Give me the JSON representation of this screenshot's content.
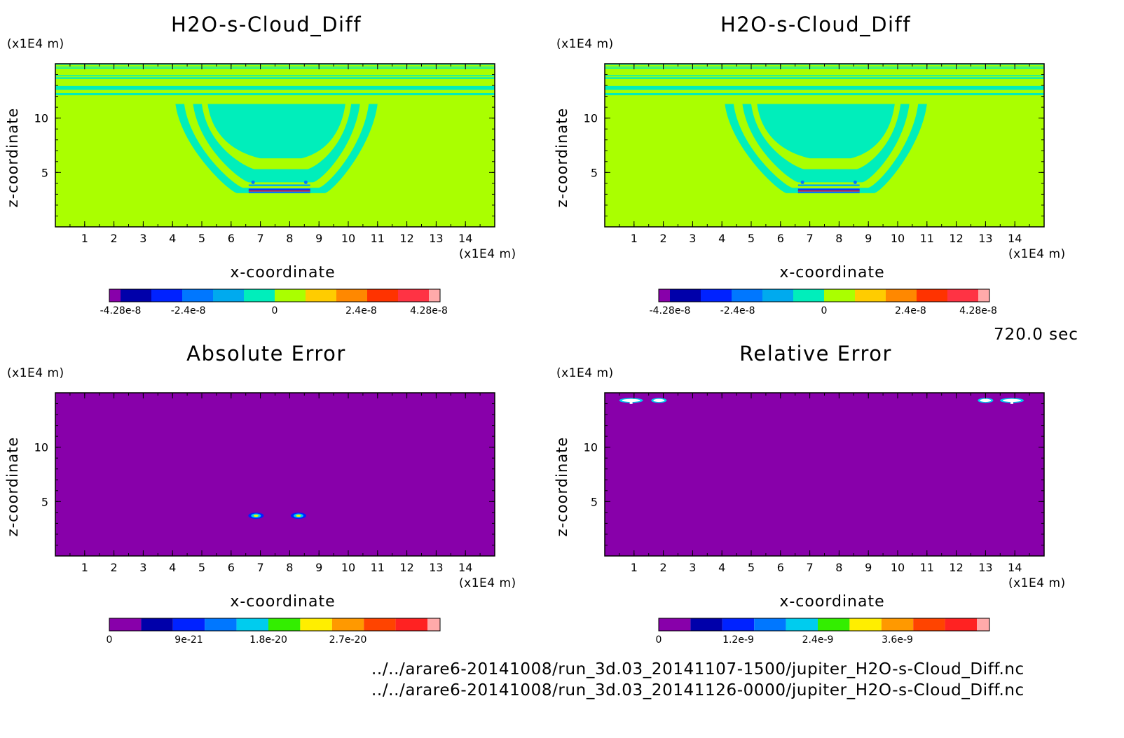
{
  "chart_data": [
    {
      "type": "heatmap",
      "title": "H2O-s-Cloud_Diff",
      "xlabel": "x-coordinate",
      "ylabel": "z-coordinate",
      "x_unit": "(x1E4 m)",
      "z_unit": "(x1E4 m)",
      "xlim": [
        0,
        15
      ],
      "ylim": [
        0,
        15
      ],
      "x_ticks": [
        "1",
        "2",
        "3",
        "4",
        "5",
        "6",
        "7",
        "8",
        "9",
        "10",
        "11",
        "12",
        "13",
        "14"
      ],
      "y_ticks": [
        "5",
        "10"
      ],
      "colorbar": {
        "min": -4.28e-08,
        "max": 4.28e-08,
        "tick_labels": [
          "-4.28e-8",
          "-2.4e-8",
          "0",
          "2.4e-8",
          "4.28e-8"
        ]
      },
      "field": "cloud difference field with bowl-shaped anomaly centred near x=7.7, z=3.5-12"
    },
    {
      "type": "heatmap",
      "title": "H2O-s-Cloud_Diff",
      "xlabel": "x-coordinate",
      "ylabel": "z-coordinate",
      "x_unit": "(x1E4 m)",
      "z_unit": "(x1E4 m)",
      "xlim": [
        0,
        15
      ],
      "ylim": [
        0,
        15
      ],
      "x_ticks": [
        "1",
        "2",
        "3",
        "4",
        "5",
        "6",
        "7",
        "8",
        "9",
        "10",
        "11",
        "12",
        "13",
        "14"
      ],
      "y_ticks": [
        "5",
        "10"
      ],
      "colorbar": {
        "min": -4.28e-08,
        "max": 4.28e-08,
        "tick_labels": [
          "-4.28e-8",
          "-2.4e-8",
          "0",
          "2.4e-8",
          "4.28e-8"
        ]
      },
      "field": "identical to left panel"
    },
    {
      "type": "heatmap",
      "title": "Absolute Error",
      "xlabel": "x-coordinate",
      "ylabel": "z-coordinate",
      "x_unit": "(x1E4 m)",
      "z_unit": "(x1E4 m)",
      "xlim": [
        0,
        15
      ],
      "ylim": [
        0,
        15
      ],
      "x_ticks": [
        "1",
        "2",
        "3",
        "4",
        "5",
        "6",
        "7",
        "8",
        "9",
        "10",
        "11",
        "12",
        "13",
        "14"
      ],
      "y_ticks": [
        "5",
        "10"
      ],
      "colorbar": {
        "min": 0,
        "max": 3.6e-20,
        "tick_labels": [
          "0",
          "9e-21",
          "1.8e-20",
          "2.7e-20"
        ]
      },
      "hotspots": [
        {
          "x": 6.85,
          "z": 3.7
        },
        {
          "x": 8.3,
          "z": 3.7
        }
      ]
    },
    {
      "type": "heatmap",
      "title": "Relative Error",
      "xlabel": "x-coordinate",
      "ylabel": "z-coordinate",
      "x_unit": "(x1E4 m)",
      "z_unit": "(x1E4 m)",
      "xlim": [
        0,
        15
      ],
      "ylim": [
        0,
        15
      ],
      "x_ticks": [
        "1",
        "2",
        "3",
        "4",
        "5",
        "6",
        "7",
        "8",
        "9",
        "10",
        "11",
        "12",
        "13",
        "14"
      ],
      "y_ticks": [
        "5",
        "10"
      ],
      "colorbar": {
        "min": 0,
        "max": 4.8e-09,
        "tick_labels": [
          "0",
          "1.2e-9",
          "2.4e-9",
          "3.6e-9"
        ]
      },
      "hotspots": [
        {
          "x": 0.9,
          "z": 14.3
        },
        {
          "x": 1.85,
          "z": 14.3
        },
        {
          "x": 13.0,
          "z": 14.3
        },
        {
          "x": 13.9,
          "z": 14.3
        }
      ]
    }
  ],
  "time_label": "720.0 sec",
  "file_paths": [
    "../../arare6-20141008/run_3d.03_20141107-1500/jupiter_H2O-s-Cloud_Diff.nc",
    "../../arare6-20141008/run_3d.03_20141126-0000/jupiter_H2O-s-Cloud_Diff.nc"
  ],
  "colors": {
    "diff_palette": [
      "#8800aa",
      "#0000aa",
      "#0022ff",
      "#0077ff",
      "#00aaee",
      "#00eebb",
      "#aaff00",
      "#ffcc00",
      "#ff8800",
      "#ff3300",
      "#ff3344",
      "#ffaaaa"
    ],
    "err_palette": [
      "#8800aa",
      "#0000aa",
      "#0022ff",
      "#0077ff",
      "#00ccee",
      "#33ee00",
      "#ffee00",
      "#ff9900",
      "#ff4400",
      "#ff2222",
      "#ffaaaa"
    ]
  }
}
